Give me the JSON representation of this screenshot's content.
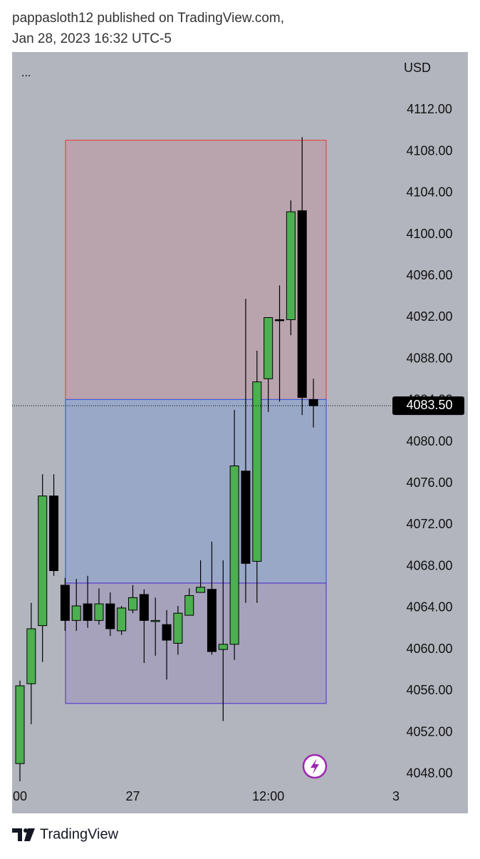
{
  "header": {
    "line1": "pappasloth12 published on TradingView.com,",
    "line2": "Jan 28, 2023 16:32 UTC-5"
  },
  "menu": "...",
  "footer": {
    "brand": "TradingView"
  },
  "chart_data": {
    "type": "candlestick",
    "currency": "USD",
    "up_color": "#4caf50",
    "down_color": "#000000",
    "categories": [
      "00",
      null,
      null,
      null,
      null,
      null,
      null,
      null,
      null,
      null,
      "27",
      null,
      null,
      null,
      null,
      null,
      null,
      null,
      null,
      null,
      null,
      null,
      "12:00",
      null,
      null,
      null,
      null,
      null,
      null,
      null,
      null,
      null,
      null,
      "3"
    ],
    "open": [
      4049.0,
      4056.7,
      4062.3,
      4074.8,
      4066.2,
      4062.8,
      4064.4,
      4062.8,
      4064.4,
      4061.8,
      4063.8,
      4065.3,
      4062.8,
      4062.4,
      4060.6,
      4063.3,
      4065.5,
      4065.8,
      4060.0,
      4060.5,
      4077.2,
      4068.5,
      4086.1,
      4091.8,
      4091.8,
      4102.3,
      4084.1,
      null,
      null,
      null,
      null,
      null,
      null,
      null
    ],
    "high": [
      4057.0,
      4064.5,
      4076.9,
      4076.9,
      4066.9,
      4066.8,
      4067.1,
      4065.9,
      4065.5,
      4064.2,
      4066.2,
      4065.8,
      4065.0,
      4063.8,
      4064.2,
      4065.9,
      4068.6,
      4070.4,
      4068.6,
      4083.1,
      4093.8,
      4088.8,
      4092.0,
      4095.1,
      4103.3,
      4109.4,
      4086.1,
      null,
      null,
      null,
      null,
      null,
      null,
      null
    ],
    "low": [
      4047.3,
      4052.8,
      4058.8,
      4067.1,
      4061.8,
      4061.8,
      4062.1,
      4062.4,
      4061.3,
      4061.4,
      4063.5,
      4058.7,
      4059.4,
      4057.1,
      4059.5,
      4063.3,
      4065.5,
      4059.5,
      4053.1,
      4059.0,
      4064.5,
      4064.5,
      4082.9,
      4083.9,
      4090.3,
      4082.6,
      4081.4,
      null,
      null,
      null,
      null,
      null,
      null,
      null
    ],
    "close": [
      4056.5,
      4062.0,
      4074.8,
      4067.6,
      4062.8,
      4064.2,
      4062.8,
      4064.4,
      4062.0,
      4064.0,
      4065.0,
      4062.8,
      4062.8,
      4060.9,
      4063.5,
      4065.2,
      4066.0,
      4059.8,
      4060.5,
      4077.7,
      4068.3,
      4085.8,
      4092.0,
      4091.7,
      4102.2,
      4084.3,
      4083.5,
      null,
      null,
      null,
      null,
      null,
      null,
      null
    ],
    "zones": [
      {
        "top": 4109.1,
        "bottom": 4084.1,
        "fill": "#b9a3ad",
        "stroke": "#e04a4a"
      },
      {
        "top": 4084.1,
        "bottom": 4066.4,
        "fill": "#9aa8c8",
        "stroke": "#3b5fe0"
      },
      {
        "top": 4066.4,
        "bottom": 4054.8,
        "fill": "#a6a2bb",
        "stroke": "#5a40cc"
      }
    ],
    "last_price": {
      "value": 4083.5,
      "label": "4083.50"
    },
    "ylim": [
      4044.2,
      4117.6
    ],
    "yticks": [
      {
        "value": 4112,
        "label": "4112.00"
      },
      {
        "value": 4108,
        "label": "4108.00"
      },
      {
        "value": 4104,
        "label": "4104.00"
      },
      {
        "value": 4100,
        "label": "4100.00"
      },
      {
        "value": 4096,
        "label": "4096.00"
      },
      {
        "value": 4092,
        "label": "4092.00"
      },
      {
        "value": 4088,
        "label": "4088.00"
      },
      {
        "value": 4084,
        "label": "4084.00"
      },
      {
        "value": 4080,
        "label": "4080.00"
      },
      {
        "value": 4076,
        "label": "4076.00"
      },
      {
        "value": 4072,
        "label": "4072.00"
      },
      {
        "value": 4068,
        "label": "4068.00"
      },
      {
        "value": 4064,
        "label": "4064.00"
      },
      {
        "value": 4060,
        "label": "4060.00"
      },
      {
        "value": 4056,
        "label": "4056.00"
      },
      {
        "value": 4052,
        "label": "4052.00"
      },
      {
        "value": 4048,
        "label": "4048.00"
      }
    ]
  }
}
